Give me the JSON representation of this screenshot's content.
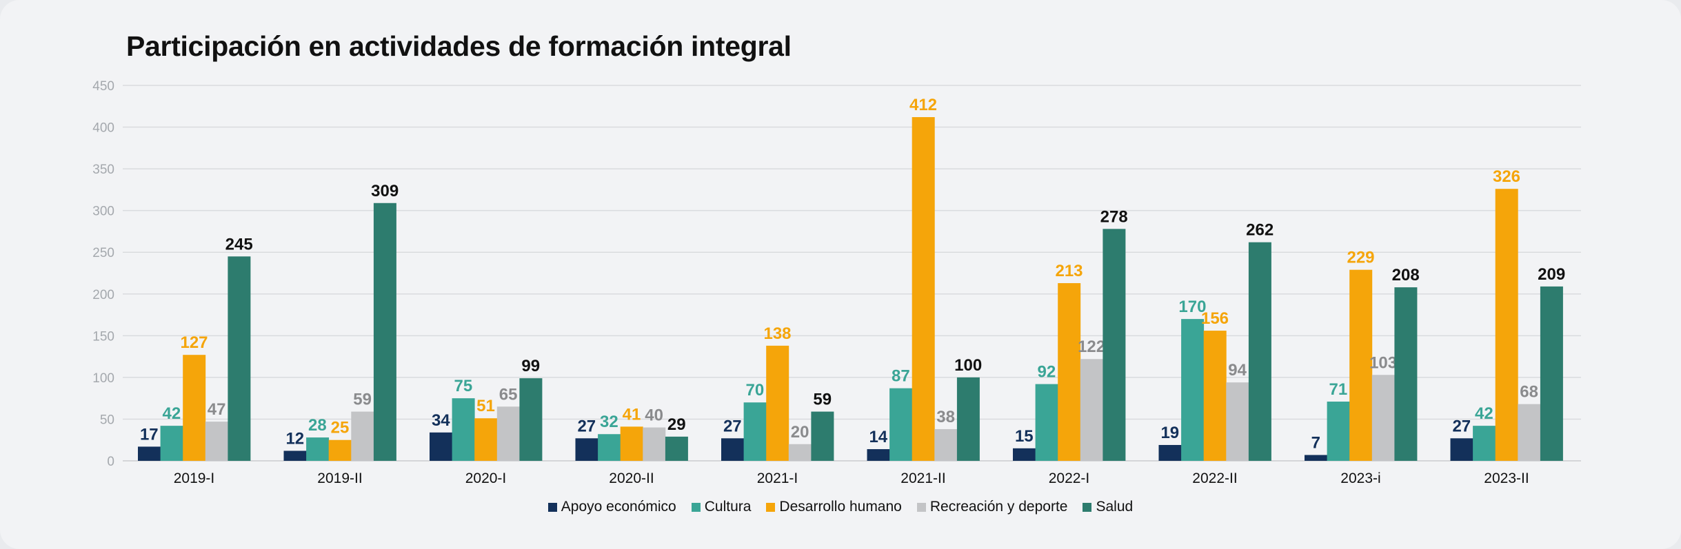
{
  "chart_data": {
    "type": "bar",
    "title": "Participación en actividades de formación integral",
    "categories": [
      "2019-I",
      "2019-II",
      "2020-I",
      "2020-II",
      "2021-I",
      "2021-II",
      "2022-I",
      "2022-II",
      "2023-i",
      "2023-II"
    ],
    "ylim": [
      0,
      450
    ],
    "yticks": [
      "0",
      "50",
      "100",
      "150",
      "200",
      "250",
      "300",
      "350",
      "400",
      "450"
    ],
    "xlabel": "",
    "ylabel": "",
    "grid": true,
    "legend_position": "bottom",
    "series": [
      {
        "name": "Apoyo económico",
        "color": "#13305a",
        "label_color": "#13305a",
        "values": [
          17,
          12,
          34,
          27,
          27,
          14,
          15,
          19,
          7,
          27
        ]
      },
      {
        "name": "Cultura",
        "color": "#3aa596",
        "label_color": "#3aa596",
        "values": [
          42,
          28,
          75,
          32,
          70,
          87,
          92,
          170,
          71,
          42
        ]
      },
      {
        "name": "Desarrollo humano",
        "color": "#f5a50a",
        "label_color": "#f5a50a",
        "values": [
          127,
          25,
          51,
          41,
          138,
          412,
          213,
          156,
          229,
          326
        ]
      },
      {
        "name": "Recreación y deporte",
        "color": "#c3c4c6",
        "label_color": "#8a8b8d",
        "values": [
          47,
          59,
          65,
          40,
          20,
          38,
          122,
          94,
          103,
          68
        ]
      },
      {
        "name": "Salud",
        "color": "#2d7c6e",
        "label_color": "#111111",
        "values": [
          245,
          309,
          99,
          29,
          59,
          100,
          278,
          262,
          208,
          209
        ]
      }
    ]
  }
}
